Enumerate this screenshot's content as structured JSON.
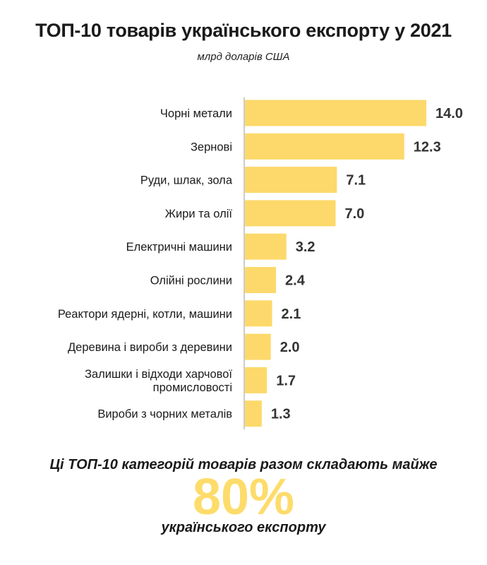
{
  "header": {
    "title": "ТОП-10 товарів українського експорту у 2021",
    "subtitle": "млрд доларів США"
  },
  "colors": {
    "bar": "#fdd96b",
    "accent": "#fddc6b",
    "axis": "#bbbbbb"
  },
  "chart_data": {
    "type": "bar",
    "orientation": "horizontal",
    "title": "ТОП-10 товарів українського експорту у 2021",
    "subtitle": "млрд доларів США",
    "xlabel": "",
    "ylabel": "",
    "xlim": [
      0,
      14
    ],
    "grid": false,
    "categories": [
      [
        "Чорні метали"
      ],
      [
        "Зернові"
      ],
      [
        "Руди, шлак, зола"
      ],
      [
        "Жири та олії"
      ],
      [
        "Електричні машини"
      ],
      [
        "Олійні рослини"
      ],
      [
        "Реактори ядерні, котли, машини"
      ],
      [
        "Деревина і вироби з деревини"
      ],
      [
        "Залишки і відходи харчової",
        "промисловості"
      ],
      [
        "Вироби з чорних металів"
      ]
    ],
    "values": [
      14.0,
      12.3,
      7.1,
      7.0,
      3.2,
      2.4,
      2.1,
      2.0,
      1.7,
      1.3
    ],
    "value_labels": [
      "14.0",
      "12.3",
      "7.1",
      "7.0",
      "3.2",
      "2.4",
      "2.1",
      "2.0",
      "1.7",
      "1.3"
    ]
  },
  "footer": {
    "note": "Ці ТОП-10 категорій товарів разом складають майже",
    "big_value": "80%",
    "tail": "українського експорту"
  }
}
